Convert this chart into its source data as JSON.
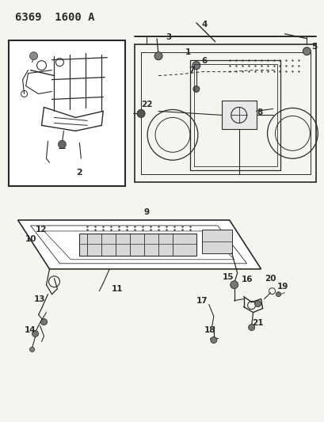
{
  "title": "6369  1600 A",
  "bg_color": "#f5f5f0",
  "line_color": "#2a2a2a",
  "title_fontsize": 10,
  "label_fontsize": 7.5,
  "figsize": [
    4.1,
    5.33
  ],
  "dpi": 100
}
